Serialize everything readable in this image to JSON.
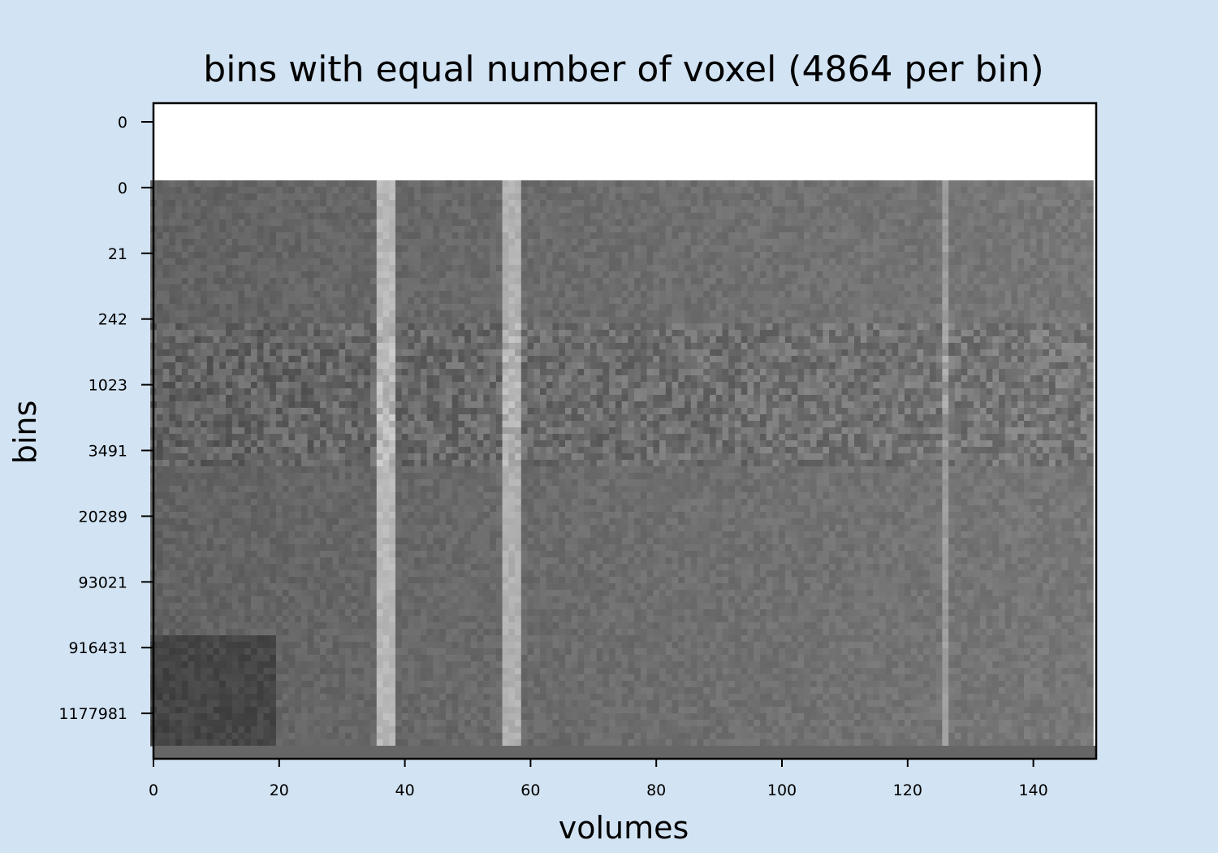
{
  "chart_data": {
    "type": "heatmap",
    "title": "bins with equal number of voxel (4864 per bin)",
    "xlabel": "volumes",
    "ylabel": "bins",
    "xlim": [
      0,
      150
    ],
    "x_ticks": [
      "0",
      "20",
      "40",
      "60",
      "80",
      "100",
      "120",
      "140"
    ],
    "y_ticks": [
      "0",
      "0",
      "21",
      "242",
      "1023",
      "3491",
      "20289",
      "93021",
      "916431",
      "1177981"
    ],
    "num_volumes": 150,
    "grid": false,
    "colormap": "gray",
    "background_color": "#d2e3f3",
    "bright_columns": [
      37,
      57
    ],
    "bright_column_values": [
      0.98,
      0.92
    ],
    "dark_band_rows": [
      "3491",
      "916431"
    ],
    "bright_late_column": 126
  }
}
